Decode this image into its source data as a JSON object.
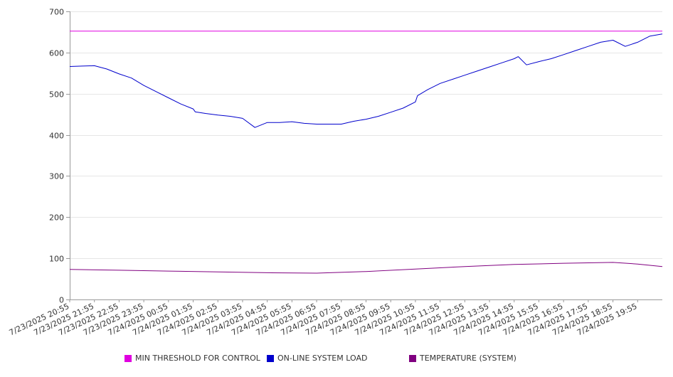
{
  "chart_data": {
    "type": "line",
    "title": "",
    "xlabel": "",
    "ylabel": "",
    "ylim": [
      0,
      700
    ],
    "y_ticks": [
      0,
      100,
      200,
      300,
      400,
      500,
      600,
      700
    ],
    "grid": true,
    "legend_position": "bottom",
    "x_tick_labels": [
      "7/23/2025 20:55",
      "7/23/2025 21:55",
      "7/23/2025 22:55",
      "7/23/2025 23:55",
      "7/24/2025 00:55",
      "7/24/2025 01:55",
      "7/24/2025 02:55",
      "7/24/2025 03:55",
      "7/24/2025 04:55",
      "7/24/2025 05:55",
      "7/24/2025 06:55",
      "7/24/2025 07:55",
      "7/24/2025 08:55",
      "7/24/2025 09:55",
      "7/24/2025 10:55",
      "7/24/2025 11:55",
      "7/24/2025 12:55",
      "7/24/2025 13:55",
      "7/24/2025 14:55",
      "7/24/2025 15:55",
      "7/24/2025 16:55",
      "7/24/2025 17:55",
      "7/24/2025 18:55",
      "7/24/2025 19:55"
    ],
    "series": [
      {
        "name": "MIN THRESHOLD FOR CONTROL",
        "color": "#e000e0",
        "x": [
          "7/23/2025 20:55",
          "7/24/2025 20:55"
        ],
        "values": [
          652,
          652
        ]
      },
      {
        "name": "ON-LINE SYSTEM LOAD",
        "color": "#0000cc",
        "x": [
          "7/23/2025 20:55",
          "7/23/2025 21:25",
          "7/23/2025 21:55",
          "7/23/2025 22:25",
          "7/23/2025 22:55",
          "7/23/2025 23:25",
          "7/23/2025 23:55",
          "7/24/2025 00:25",
          "7/24/2025 00:55",
          "7/24/2025 01:25",
          "7/24/2025 01:55",
          "7/24/2025 02:00",
          "7/24/2025 02:25",
          "7/24/2025 02:55",
          "7/24/2025 03:25",
          "7/24/2025 03:55",
          "7/24/2025 04:25",
          "7/24/2025 04:55",
          "7/24/2025 05:25",
          "7/24/2025 05:55",
          "7/24/2025 06:25",
          "7/24/2025 06:55",
          "7/24/2025 07:25",
          "7/24/2025 07:55",
          "7/24/2025 08:25",
          "7/24/2025 08:55",
          "7/24/2025 09:25",
          "7/24/2025 09:55",
          "7/24/2025 10:25",
          "7/24/2025 10:55",
          "7/24/2025 11:00",
          "7/24/2025 11:25",
          "7/24/2025 11:55",
          "7/24/2025 12:25",
          "7/24/2025 12:55",
          "7/24/2025 13:25",
          "7/24/2025 13:55",
          "7/24/2025 14:25",
          "7/24/2025 14:55",
          "7/24/2025 15:05",
          "7/24/2025 15:25",
          "7/24/2025 15:55",
          "7/24/2025 16:25",
          "7/24/2025 16:55",
          "7/24/2025 17:25",
          "7/24/2025 17:55",
          "7/24/2025 18:25",
          "7/24/2025 18:55",
          "7/24/2025 19:25",
          "7/24/2025 19:55",
          "7/24/2025 20:25",
          "7/24/2025 20:55"
        ],
        "values": [
          566,
          567,
          568,
          560,
          548,
          538,
          520,
          505,
          490,
          475,
          463,
          456,
          452,
          448,
          445,
          440,
          418,
          430,
          430,
          432,
          428,
          426,
          426,
          426,
          433,
          438,
          445,
          455,
          465,
          480,
          495,
          510,
          525,
          535,
          545,
          555,
          565,
          575,
          585,
          590,
          570,
          578,
          585,
          595,
          605,
          615,
          625,
          630,
          615,
          625,
          640,
          645
        ]
      },
      {
        "name": "TEMPERATURE (SYSTEM)",
        "color": "#800080",
        "x": [
          "7/23/2025 20:55",
          "7/23/2025 22:55",
          "7/24/2025 00:55",
          "7/24/2025 02:55",
          "7/24/2025 04:55",
          "7/24/2025 06:55",
          "7/24/2025 08:55",
          "7/24/2025 10:55",
          "7/24/2025 12:55",
          "7/24/2025 14:55",
          "7/24/2025 16:55",
          "7/24/2025 18:55",
          "7/24/2025 19:55",
          "7/24/2025 20:55"
        ],
        "values": [
          73,
          71,
          69,
          67,
          65,
          64,
          68,
          74,
          80,
          85,
          88,
          90,
          86,
          80
        ]
      }
    ]
  }
}
